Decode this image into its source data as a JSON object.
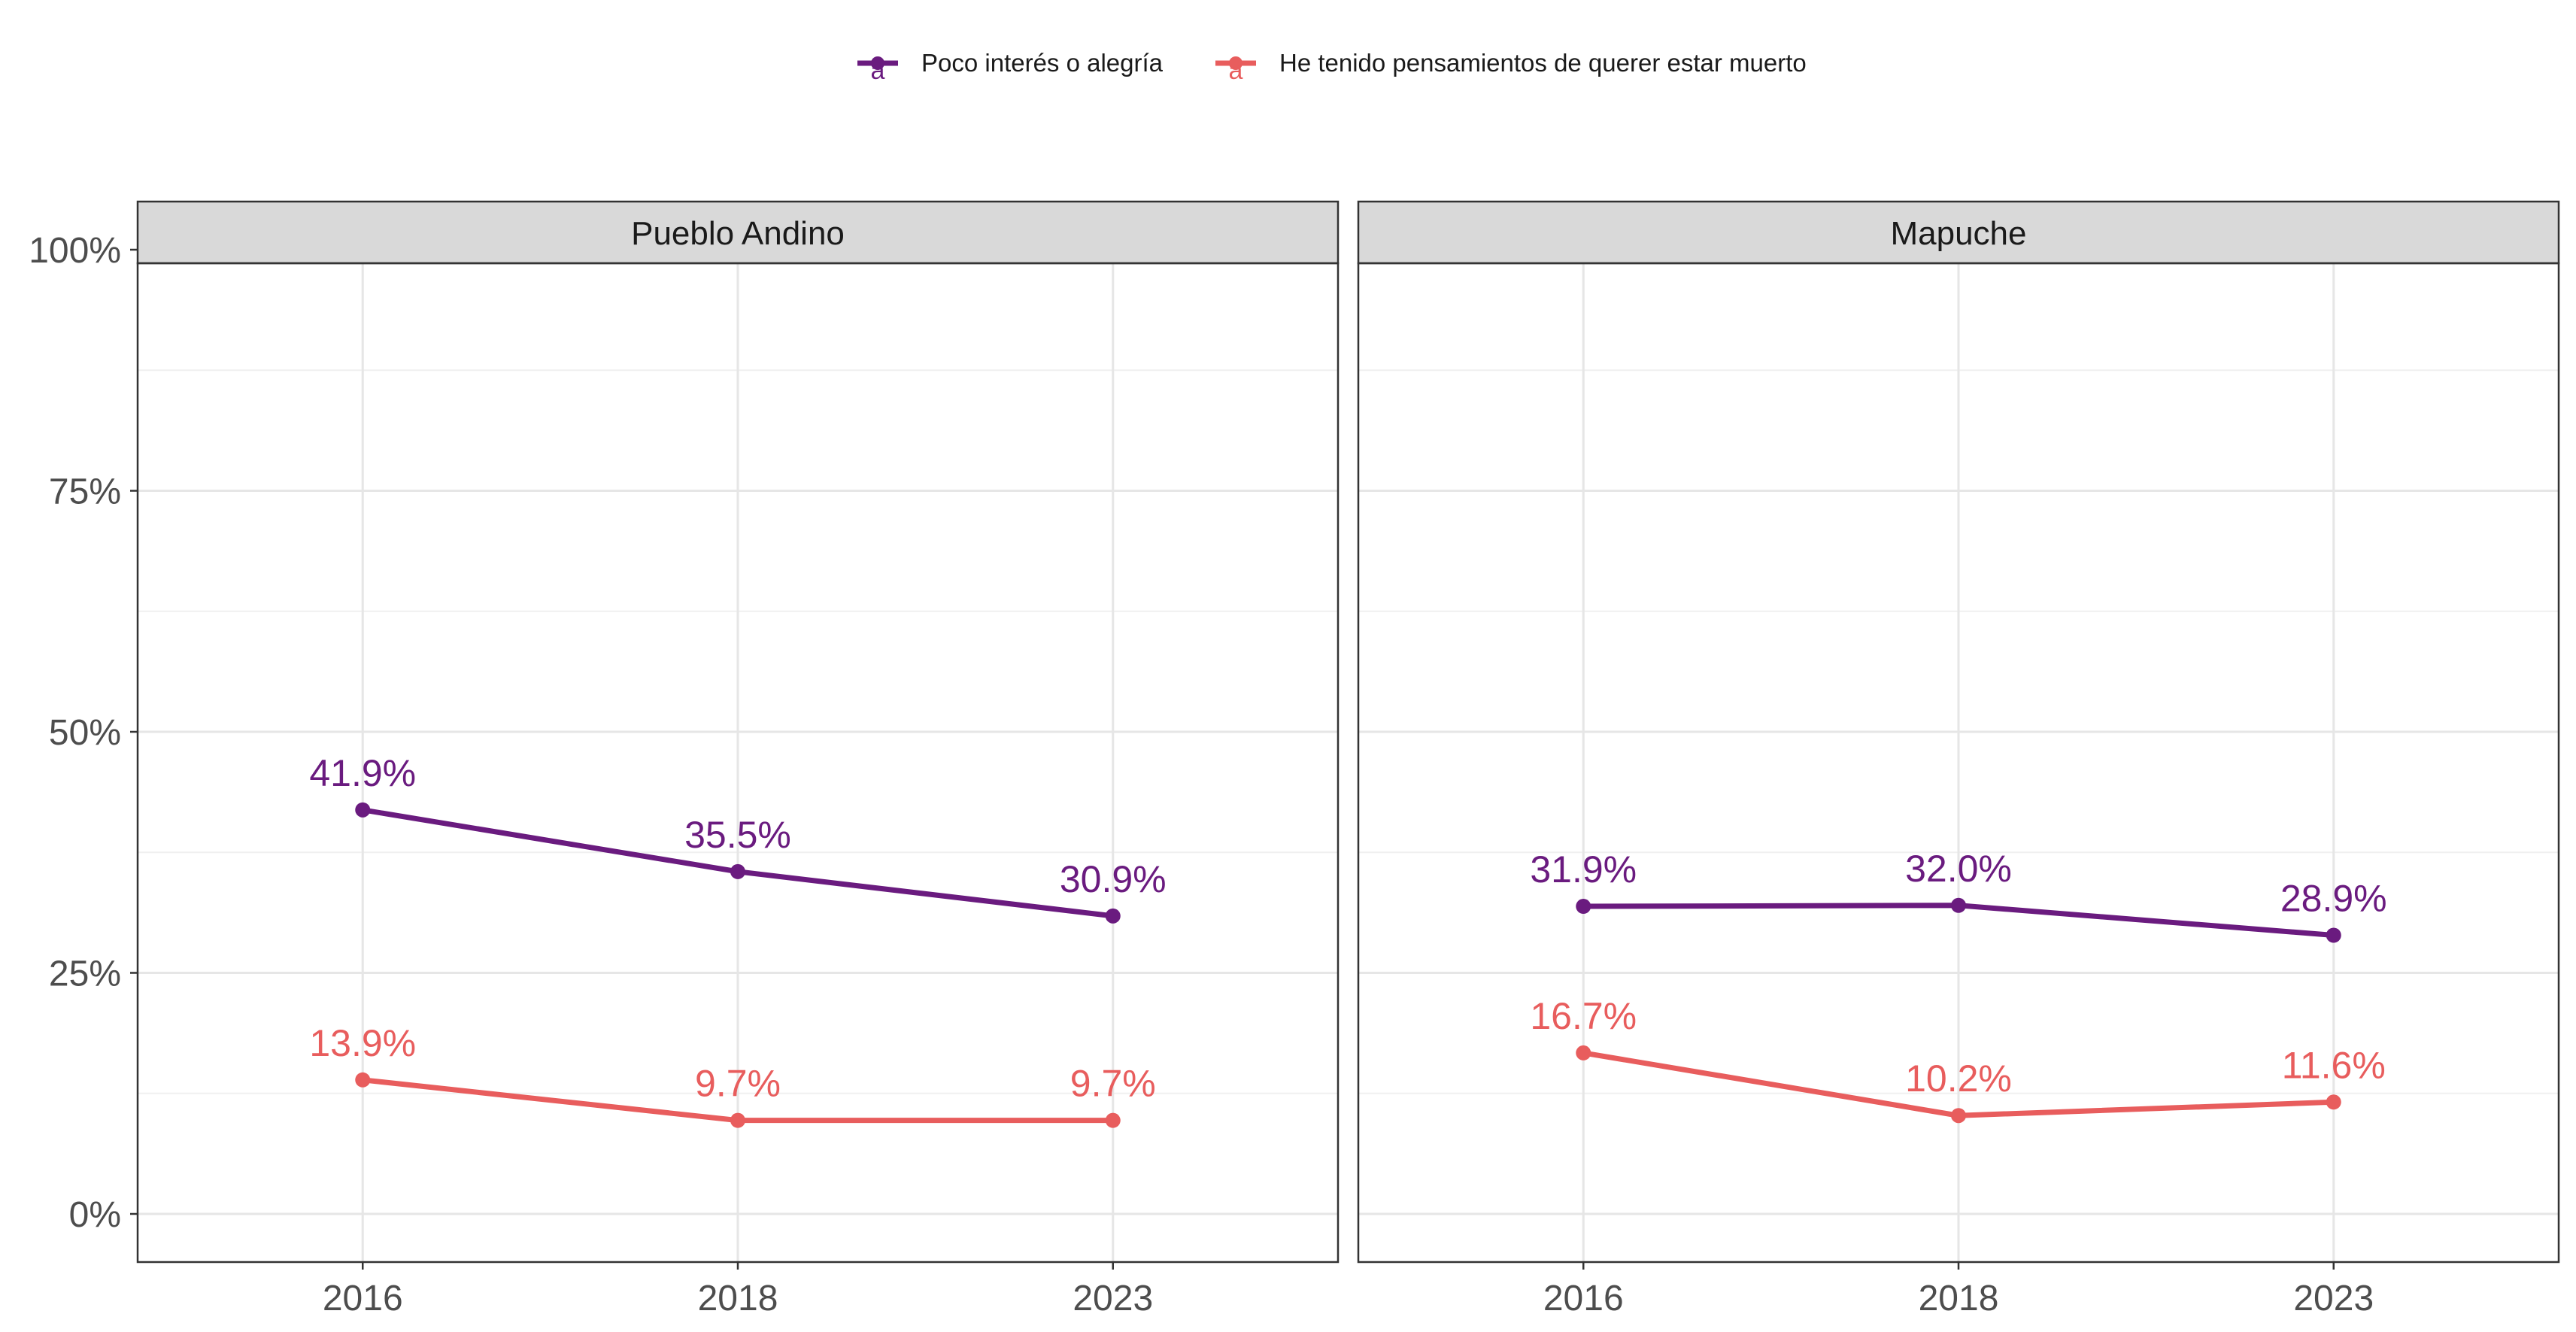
{
  "chart_data": {
    "type": "line",
    "facets": [
      "Pueblo Andino",
      "Mapuche"
    ],
    "x": [
      "2016",
      "2018",
      "2023"
    ],
    "y_ticks": [
      "0%",
      "25%",
      "50%",
      "75%",
      "100%"
    ],
    "ylim": [
      0,
      100
    ],
    "grid": true,
    "legend_position": "top",
    "series": [
      {
        "name": "Poco interés o alegría",
        "color": "#6A1B7F",
        "values": {
          "Pueblo Andino": [
            41.9,
            35.5,
            30.9
          ],
          "Mapuche": [
            31.9,
            32.0,
            28.9
          ]
        },
        "labels": {
          "Pueblo Andino": [
            "41.9%",
            "35.5%",
            "30.9%"
          ],
          "Mapuche": [
            "31.9%",
            "32.0%",
            "28.9%"
          ]
        }
      },
      {
        "name": "He tenido pensamientos de querer estar muerto",
        "color": "#E85D5D",
        "values": {
          "Pueblo Andino": [
            13.9,
            9.7,
            9.7
          ],
          "Mapuche": [
            16.7,
            10.2,
            11.6
          ]
        },
        "labels": {
          "Pueblo Andino": [
            "13.9%",
            "9.7%",
            "9.7%"
          ],
          "Mapuche": [
            "16.7%",
            "10.2%",
            "11.6%"
          ]
        }
      }
    ]
  }
}
